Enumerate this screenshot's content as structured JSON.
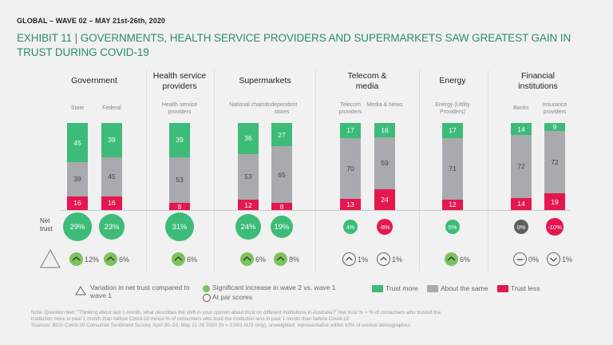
{
  "header": {
    "kicker": "GLOBAL – WAVE  02 – MAY 21st-26th, 2020",
    "title": "EXHIBIT 11 | GOVERNMENTS, HEALTH SERVICE PROVIDERS AND SUPERMARKETS SAW GREATEST GAIN IN TRUST DURING COVID-19"
  },
  "row_labels": {
    "net_trust": "Net trust"
  },
  "colors": {
    "trust_more": "#3dbb78",
    "about_same": "#a9aaad",
    "trust_less": "#e5174f",
    "significant": "#7cc35c",
    "neutral": "#5f5f5f",
    "title": "#2e8b63"
  },
  "chart_data": {
    "type": "bar",
    "stacked": true,
    "title": "Exhibit 11 | Governments, health service providers and supermarkets saw greatest gain in trust during COVID-19",
    "ylim": [
      0,
      100
    ],
    "unit": "%",
    "series_names": [
      "Trust more",
      "About the same",
      "Trust less"
    ],
    "groups": [
      {
        "name": "Government",
        "categories": [
          {
            "label": "State",
            "trust_more": 45,
            "about_same": 39,
            "trust_less": 16,
            "net_trust": "29%",
            "net_sign": "positive",
            "delta": "12%",
            "delta_type": "significant-up"
          },
          {
            "label": "Federal",
            "trust_more": 39,
            "about_same": 45,
            "trust_less": 16,
            "net_trust": "23%",
            "net_sign": "positive",
            "delta": "6%",
            "delta_type": "significant-up"
          }
        ]
      },
      {
        "name": "Health service providers",
        "categories": [
          {
            "label": "Health service providers",
            "trust_more": 39,
            "about_same": 53,
            "trust_less": 8,
            "net_trust": "31%",
            "net_sign": "positive",
            "delta": "6%",
            "delta_type": "significant-up"
          }
        ]
      },
      {
        "name": "Supermarkets",
        "categories": [
          {
            "label": "National chains",
            "trust_more": 36,
            "about_same": 53,
            "trust_less": 12,
            "net_trust": "24%",
            "net_sign": "positive",
            "delta": "6%",
            "delta_type": "significant-up"
          },
          {
            "label": "Independent stores",
            "trust_more": 27,
            "about_same": 65,
            "trust_less": 8,
            "net_trust": "19%",
            "net_sign": "positive",
            "delta": "8%",
            "delta_type": "significant-up"
          }
        ]
      },
      {
        "name": "Telecom & media",
        "categories": [
          {
            "label": "Telecom providers",
            "trust_more": 17,
            "about_same": 70,
            "trust_less": 13,
            "net_trust": "4%",
            "net_sign": "positive",
            "delta": "1%",
            "delta_type": "par-up"
          },
          {
            "label": "Media & News",
            "trust_more": 16,
            "about_same": 59,
            "trust_less": 24,
            "net_trust": "-8%",
            "net_sign": "negative",
            "delta": "1%",
            "delta_type": "par-up"
          }
        ]
      },
      {
        "name": "Energy",
        "categories": [
          {
            "label": "Energy (Utility Providers)",
            "trust_more": 17,
            "about_same": 71,
            "trust_less": 12,
            "net_trust": "5%",
            "net_sign": "positive",
            "delta": "6%",
            "delta_type": "significant-up"
          }
        ]
      },
      {
        "name": "Financial institutions",
        "categories": [
          {
            "label": "Banks",
            "trust_more": 14,
            "about_same": 72,
            "trust_less": 14,
            "net_trust": "0%",
            "net_sign": "neutral",
            "delta": "0%",
            "delta_type": "par-flat"
          },
          {
            "label": "Insurance providers",
            "trust_more": 9,
            "about_same": 72,
            "trust_less": 19,
            "net_trust": "-10%",
            "net_sign": "negative",
            "delta": "1%",
            "delta_type": "par-down"
          }
        ]
      }
    ],
    "legend": {
      "variation": "Variation in net trust compared to wave 1",
      "significant": "Significant increase in wave 2 vs. wave 1",
      "at_par": "At par scores",
      "trust_more": "Trust more",
      "about_same": "About the same",
      "trust_less": "Trust less"
    }
  },
  "notes": [
    "Note: Question text: “Thinking about last 1 month, what describes the shift in your opinion about trust on different institutions in Australia?” Net trust % = % of consumers who trusted the",
    "institution more in past 1 month than before Covid-19 minus % of consumers who trust the institution less in past 1 month than before Covid-19",
    "Sources: BCG Covid-19 Consumer Sentiment Survey, April 20–24, May 21-26 2020 (N = 2,093 AUS only), unweighted;  representative within ±3% of census demographics"
  ]
}
